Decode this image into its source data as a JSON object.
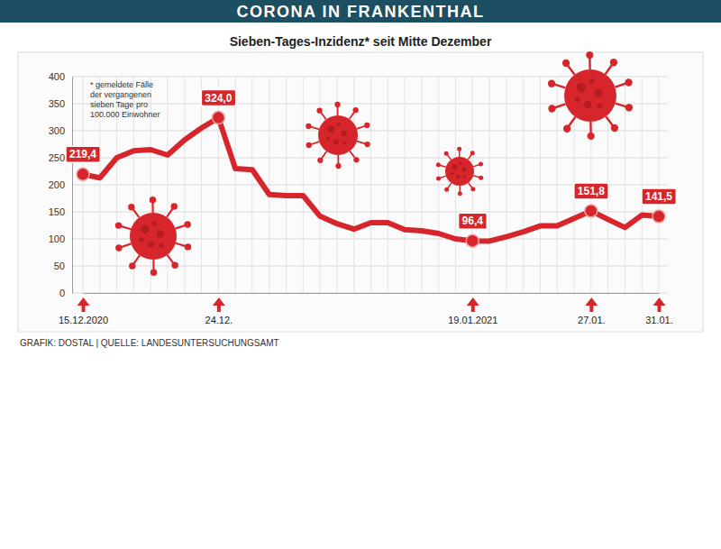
{
  "chart_data": {
    "type": "line",
    "title": "CORONA IN FRANKENTHAL",
    "subtitle": "Sieben-Tages-Inzidenz* seit Mitte Dezember",
    "footnote": [
      "* gemeldete Fälle",
      "der vergangenen",
      "sieben Tage pro",
      "100.000 Einwohner"
    ],
    "source": "GRAFIK: DOSTAL | QUELLE: LANDESUNTERSUCHUNGSAMT",
    "categories": [
      "15.12.2020",
      null,
      null,
      null,
      null,
      null,
      null,
      null,
      "24.12.",
      null,
      null,
      null,
      null,
      null,
      null,
      null,
      null,
      null,
      null,
      null,
      null,
      null,
      null,
      "19.01.2021",
      null,
      null,
      null,
      null,
      null,
      null,
      "27.01.",
      null,
      null,
      null,
      "31.01."
    ],
    "values": [
      219.4,
      213,
      250,
      263,
      265,
      255,
      283,
      305,
      324.0,
      230,
      228,
      182,
      180,
      180,
      142,
      128,
      118,
      130,
      130,
      117,
      115,
      110,
      100,
      96.4,
      96,
      104,
      113,
      124,
      124,
      138,
      151.8,
      136,
      121,
      144,
      141.5
    ],
    "value_labels": [
      "219,4",
      null,
      null,
      null,
      null,
      null,
      null,
      null,
      "324,0",
      null,
      null,
      null,
      null,
      null,
      null,
      null,
      null,
      null,
      null,
      null,
      null,
      null,
      null,
      "96,4",
      null,
      null,
      null,
      null,
      null,
      null,
      "151,8",
      null,
      null,
      null,
      "141,5"
    ],
    "color": "#d6262b",
    "ylim": [
      0,
      400
    ],
    "yticks": [
      0,
      50,
      100,
      150,
      200,
      250,
      300,
      350,
      400
    ],
    "grid": true,
    "data_labels": true,
    "marker": "circle"
  }
}
